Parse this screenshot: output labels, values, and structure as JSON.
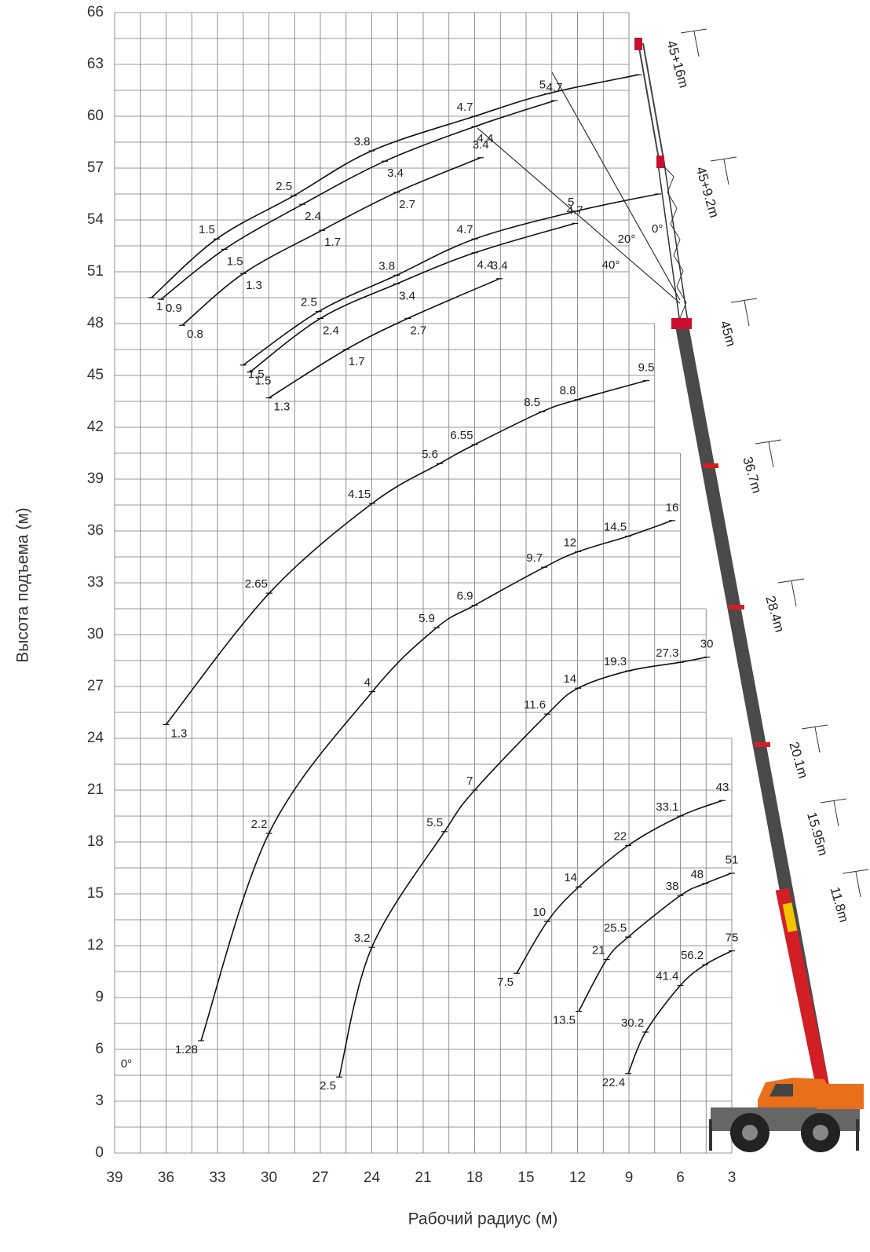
{
  "chart_data": {
    "type": "line",
    "x_label": "Рабочий радиус (м)",
    "y_label": "Высота подъема (м)",
    "xlim": [
      39,
      3
    ],
    "ylim": [
      0,
      66
    ],
    "xticks": [
      39,
      36,
      33,
      30,
      27,
      24,
      21,
      18,
      15,
      12,
      9,
      6,
      3
    ],
    "yticks": [
      0,
      3,
      6,
      9,
      12,
      15,
      18,
      21,
      24,
      27,
      30,
      33,
      36,
      39,
      42,
      45,
      48,
      51,
      54,
      57,
      60,
      63,
      66
    ],
    "grid": true,
    "color": "#111111",
    "series": [
      {
        "x": [
          9.04,
          8.03,
          6.0,
          4.55,
          3.0
        ],
        "values": [
          4.6,
          7.0,
          9.7,
          10.9,
          11.7
        ],
        "loads": [
          22.4,
          30.2,
          41.4,
          56.2,
          75
        ]
      },
      {
        "x": [
          11.93,
          10.3,
          9.04,
          6.0,
          4.55,
          3.0
        ],
        "values": [
          8.2,
          11.2,
          12.5,
          14.9,
          15.6,
          16.2
        ],
        "loads": [
          13.5,
          21,
          25.5,
          38,
          48,
          51
        ]
      },
      {
        "x": [
          15.55,
          13.76,
          11.93,
          9.04,
          6.0,
          3.55
        ],
        "values": [
          10.4,
          13.4,
          15.4,
          17.8,
          19.5,
          20.4
        ],
        "loads": [
          7.5,
          10,
          14,
          22,
          33.1,
          43
        ]
      },
      {
        "x": [
          25.9,
          24.0,
          19.76,
          18.0,
          13.76,
          11.97,
          9.04,
          6.0,
          4.46
        ],
        "values": [
          4.4,
          11.9,
          18.6,
          21.0,
          25.4,
          26.9,
          27.9,
          28.4,
          28.7
        ],
        "loads": [
          2.5,
          3.2,
          5.5,
          7,
          11.6,
          14,
          19.3,
          27.3,
          30
        ]
      },
      {
        "x": [
          33.96,
          30.0,
          23.97,
          20.22,
          18.0,
          13.94,
          11.97,
          9.04,
          6.48
        ],
        "values": [
          6.5,
          18.5,
          26.7,
          30.4,
          31.7,
          33.9,
          34.8,
          35.7,
          36.6
        ],
        "loads": [
          1.28,
          2.2,
          4,
          5.9,
          6.9,
          9.7,
          12,
          14.5,
          16
        ]
      },
      {
        "x": [
          36.0,
          29.98,
          23.97,
          20.04,
          18.0,
          14.08,
          12.0,
          7.99
        ],
        "values": [
          24.8,
          32.4,
          37.6,
          39.9,
          41.0,
          42.9,
          43.6,
          44.7
        ],
        "loads": [
          1.3,
          2.65,
          4.15,
          5.6,
          6.55,
          8.5,
          8.8,
          9.5
        ]
      },
      {
        "x": [
          31.5,
          27.1,
          22.55,
          18.0,
          12.1,
          7.3
        ],
        "values": [
          45.6,
          48.7,
          50.8,
          52.9,
          54.5,
          55.5
        ],
        "loads": [
          1.5,
          2.5,
          3.8,
          4.7,
          5,
          null
        ]
      },
      {
        "x": [
          31.1,
          27.0,
          22.55,
          18.0,
          12.15
        ],
        "values": [
          45.2,
          48.3,
          50.3,
          52.1,
          53.8
        ],
        "loads": [
          1.5,
          2.4,
          3.4,
          4.4,
          4.7
        ]
      },
      {
        "x": [
          30.0,
          25.5,
          21.9,
          16.55
        ],
        "values": [
          43.7,
          46.5,
          48.3,
          50.6
        ],
        "loads": [
          1.3,
          1.7,
          2.7,
          3.4
        ]
      },
      {
        "x": [
          36.85,
          33.05,
          28.55,
          24.0,
          18.0,
          13.76,
          8.45
        ],
        "values": [
          49.5,
          52.9,
          55.4,
          58.0,
          60.0,
          61.3,
          62.4
        ],
        "loads": [
          1,
          1.5,
          2.5,
          3.8,
          4.7,
          5,
          null
        ]
      },
      {
        "x": [
          36.3,
          32.6,
          28.05,
          23.24,
          18.0,
          13.35
        ],
        "values": [
          49.4,
          52.3,
          54.9,
          57.4,
          59.4,
          60.9
        ],
        "loads": [
          0.9,
          1.5,
          2.4,
          3.4,
          4.4,
          4.7
        ]
      },
      {
        "x": [
          35.06,
          31.49,
          26.9,
          22.55,
          17.65
        ],
        "values": [
          47.9,
          50.9,
          53.4,
          55.6,
          57.6
        ],
        "loads": [
          0.8,
          1.3,
          1.7,
          2.7,
          3.4
        ]
      }
    ],
    "boom_lengths": [
      "45+16m",
      "45+9.2m",
      "45m",
      "36.7m",
      "28.4m",
      "20.1m",
      "15.95m",
      "11.8m"
    ],
    "angle_labels": [
      "0°",
      "20°",
      "40°",
      "0°"
    ]
  }
}
